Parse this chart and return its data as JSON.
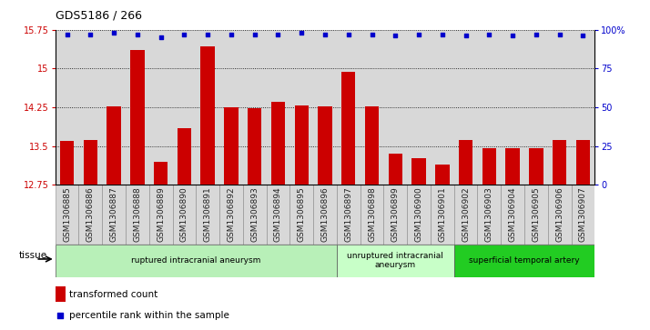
{
  "title": "GDS5186 / 266",
  "samples": [
    "GSM1306885",
    "GSM1306886",
    "GSM1306887",
    "GSM1306888",
    "GSM1306889",
    "GSM1306890",
    "GSM1306891",
    "GSM1306892",
    "GSM1306893",
    "GSM1306894",
    "GSM1306895",
    "GSM1306896",
    "GSM1306897",
    "GSM1306898",
    "GSM1306899",
    "GSM1306900",
    "GSM1306901",
    "GSM1306902",
    "GSM1306903",
    "GSM1306904",
    "GSM1306905",
    "GSM1306906",
    "GSM1306907"
  ],
  "bar_values": [
    13.6,
    13.62,
    14.27,
    15.35,
    13.2,
    13.85,
    15.42,
    14.25,
    14.23,
    14.36,
    14.28,
    14.27,
    14.94,
    14.26,
    13.35,
    13.27,
    13.15,
    13.62,
    13.45,
    13.45,
    13.45,
    13.62,
    13.62
  ],
  "percentile_values": [
    97,
    97,
    98,
    97,
    95,
    97,
    97,
    97,
    97,
    97,
    98,
    97,
    97,
    97,
    96,
    97,
    97,
    96,
    97,
    96,
    97,
    97,
    96
  ],
  "ylim_left": [
    12.75,
    15.75
  ],
  "ylim_right": [
    0,
    100
  ],
  "yticks_left": [
    12.75,
    13.5,
    14.25,
    15.0,
    15.75
  ],
  "yticks_right": [
    0,
    25,
    50,
    75,
    100
  ],
  "ytick_labels_left": [
    "12.75",
    "13.5",
    "14.25",
    "15",
    "15.75"
  ],
  "ytick_labels_right": [
    "0",
    "25",
    "50",
    "75",
    "100%"
  ],
  "bar_color": "#cc0000",
  "dot_color": "#0000cc",
  "bar_width": 0.6,
  "groups": [
    {
      "label": "ruptured intracranial aneurysm",
      "start": 0,
      "end": 12,
      "color": "#b8f0b8"
    },
    {
      "label": "unruptured intracranial\naneurysm",
      "start": 12,
      "end": 17,
      "color": "#c8ffc8"
    },
    {
      "label": "superficial temporal artery",
      "start": 17,
      "end": 23,
      "color": "#22cc22"
    }
  ],
  "tissue_label": "tissue",
  "legend_bar_label": "transformed count",
  "legend_dot_label": "percentile rank within the sample",
  "plot_bg_color": "#d8d8d8",
  "xtick_bg_color": "#d8d8d8",
  "grid_color": "#000000",
  "title_fontsize": 9,
  "tick_fontsize": 7,
  "bar_fontsize": 6.5
}
